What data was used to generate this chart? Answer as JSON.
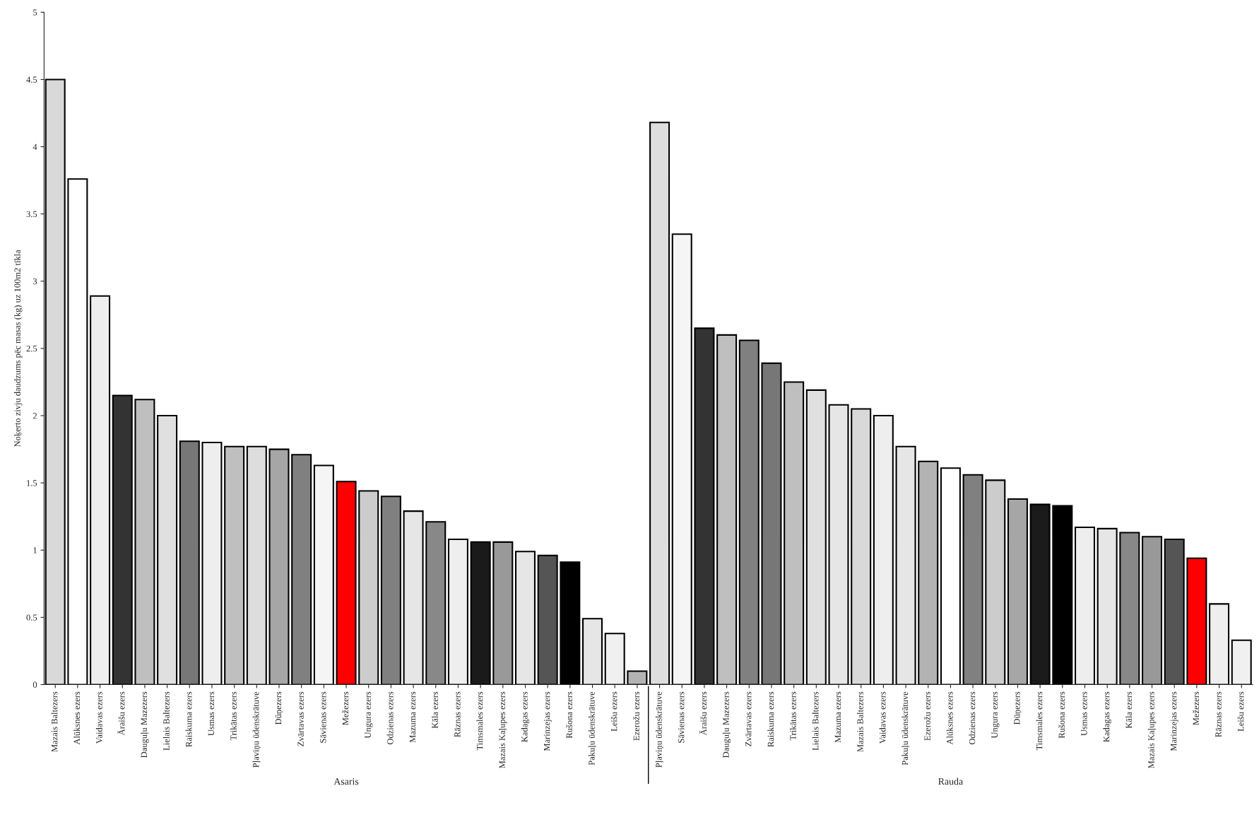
{
  "chart_data": {
    "type": "bar",
    "ylabel": "Noķerto zivju daudzums pēc masas (kg) uz 100m2 tīkla",
    "categories": [
      "Mazais Baltezers",
      "Alūksnes ezers",
      "Vaidavas ezers",
      "Āraišu ezers",
      "Dauguļu Mazezers",
      "Lielais Baltezers",
      "Raiskuma ezers",
      "Usmas ezers",
      "Trikātas ezers",
      "Pļaviņu ūdenskrātuve",
      "Dūņezers",
      "Zvārtavas ezers",
      "Sāvienas ezers",
      "Mežezers",
      "Ungura ezers",
      "Odzienas ezers",
      "Mazuma ezers",
      "Kāla ezers",
      "Rāznas ezers",
      "Timsmales ezers",
      "Mazais Kaļupes ezers",
      "Kadagas ezers",
      "Marinzejas ezers",
      "Rušona ezers",
      "Pakuļu ūdenskrātuve",
      "Leišu ezers",
      "Ezerožu ezers",
      "Pļaviņu ūdenskrātuve",
      "Sāvienas ezers",
      "Āraišu ezers",
      "Dauguļu Mazezers",
      "Zvārtavas ezers",
      "Raiskuma ezers",
      "Trikātas ezers",
      "Lielais Baltezers",
      "Mazuma ezers",
      "Mazais Baltezers",
      "Vaidavas ezers",
      "Pakuļu ūdenskrātuve",
      "Ezerožu ezers",
      "Alūksnes ezers",
      "Odzienas ezers",
      "Ungura ezers",
      "Dūņezers",
      "Timsmales ezers",
      "Rušona ezers",
      "Usmas ezers",
      "Kadagas ezers",
      "Kāla ezers",
      "Mazais Kaļupes ezers",
      "Marinzejas ezers",
      "Mežezers",
      "Rāznas ezers",
      "Leišu ezers"
    ],
    "values": [
      4.5,
      3.76,
      2.89,
      2.15,
      2.12,
      2.0,
      1.81,
      1.8,
      1.77,
      1.77,
      1.75,
      1.71,
      1.63,
      1.51,
      1.44,
      1.4,
      1.29,
      1.21,
      1.08,
      1.06,
      1.06,
      0.99,
      0.96,
      0.91,
      0.49,
      0.38,
      0.1,
      4.18,
      3.35,
      2.65,
      2.6,
      2.56,
      2.39,
      2.25,
      2.19,
      2.08,
      2.05,
      2.0,
      1.77,
      1.66,
      1.61,
      1.56,
      1.52,
      1.38,
      1.34,
      1.33,
      1.17,
      1.16,
      1.13,
      1.1,
      1.08,
      0.94,
      0.6,
      0.33
    ],
    "colors": [
      "#d9d9d9",
      "#ffffff",
      "#eeeeee",
      "#333333",
      "#bfbfbf",
      "#e0e0e0",
      "#777777",
      "#eeeeee",
      "#bfbfbf",
      "#dddddd",
      "#a6a6a6",
      "#808080",
      "#f5f5f5",
      "#ff0000",
      "#cccccc",
      "#808080",
      "#e6e6e6",
      "#888888",
      "#eeeeee",
      "#1a1a1a",
      "#999999",
      "#e6e6e6",
      "#555555",
      "#000000",
      "#e6e6e6",
      "#f0f0f0",
      "#b3b3b3",
      "#dddddd",
      "#f5f5f5",
      "#333333",
      "#bfbfbf",
      "#808080",
      "#777777",
      "#bfbfbf",
      "#e0e0e0",
      "#e6e6e6",
      "#d9d9d9",
      "#eeeeee",
      "#e6e6e6",
      "#b3b3b3",
      "#ffffff",
      "#808080",
      "#cccccc",
      "#a6a6a6",
      "#1a1a1a",
      "#000000",
      "#eeeeee",
      "#e6e6e6",
      "#888888",
      "#999999",
      "#555555",
      "#ff0000",
      "#eeeeee",
      "#f0f0f0"
    ],
    "annotations": [
      "Asaris",
      "Rauda"
    ],
    "ylim": [
      0,
      5
    ],
    "yticks": [
      0,
      0.5,
      1,
      1.5,
      2,
      2.5,
      3,
      3.5,
      4,
      4.5,
      5
    ],
    "grid": false,
    "legend": false
  }
}
